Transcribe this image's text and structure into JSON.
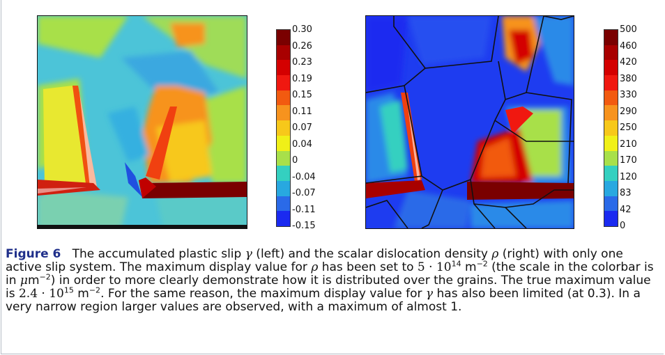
{
  "figure": {
    "left_colorbar": {
      "labels": [
        "0.30",
        "0.26",
        "0.23",
        "0.19",
        "0.15",
        "0.11",
        "0.07",
        "0.04",
        "0",
        "-0.04",
        "-0.07",
        "-0.11",
        "-0.15"
      ],
      "colors": [
        "#7a0000",
        "#a80000",
        "#d40000",
        "#f01810",
        "#f25a10",
        "#f7931e",
        "#f7c81a",
        "#f0f018",
        "#a8e04a",
        "#34d0c0",
        "#28a8e0",
        "#2a6ae8",
        "#1a2af0"
      ]
    },
    "right_colorbar": {
      "labels": [
        "500",
        "460",
        "420",
        "380",
        "330",
        "290",
        "250",
        "210",
        "170",
        "120",
        "83",
        "42",
        "0"
      ],
      "colors": [
        "#7a0000",
        "#a80000",
        "#d40000",
        "#f01810",
        "#f25a10",
        "#f7931e",
        "#f7c81a",
        "#f0f018",
        "#a8e04a",
        "#34d0c0",
        "#28a8e0",
        "#2a6ae8",
        "#1a2af0"
      ]
    }
  },
  "caption": {
    "label": "Figure 6",
    "t1": "The accumulated plastic slip ",
    "gamma": "γ",
    "t2": " (left) and the scalar dislocation density ",
    "rho": "ρ",
    "t3": " (right) with only one active slip system. The maximum display value for ",
    "rho2": "ρ",
    "t4": " has been set to ",
    "val1": "5 · 10",
    "val1_exp": "14",
    "unit1": " m",
    "unit1_exp": "−2",
    "t5": " (the scale in the colorbar is in ",
    "mu": "μ",
    "unit2": "m",
    "unit2_exp": "−2",
    "t6": ") in order to more clearly demonstrate how it is distributed over the grains. The true maximum value is ",
    "val2": "2.4 · 10",
    "val2_exp": "15",
    "unit3": " m",
    "unit3_exp": "−2",
    "t7": ". For the same reason, the maximum display value for ",
    "gamma2": "γ",
    "t8": " has also been limited (at 0.3). In a very narrow region larger values are observed, with a maximum of almost 1."
  }
}
